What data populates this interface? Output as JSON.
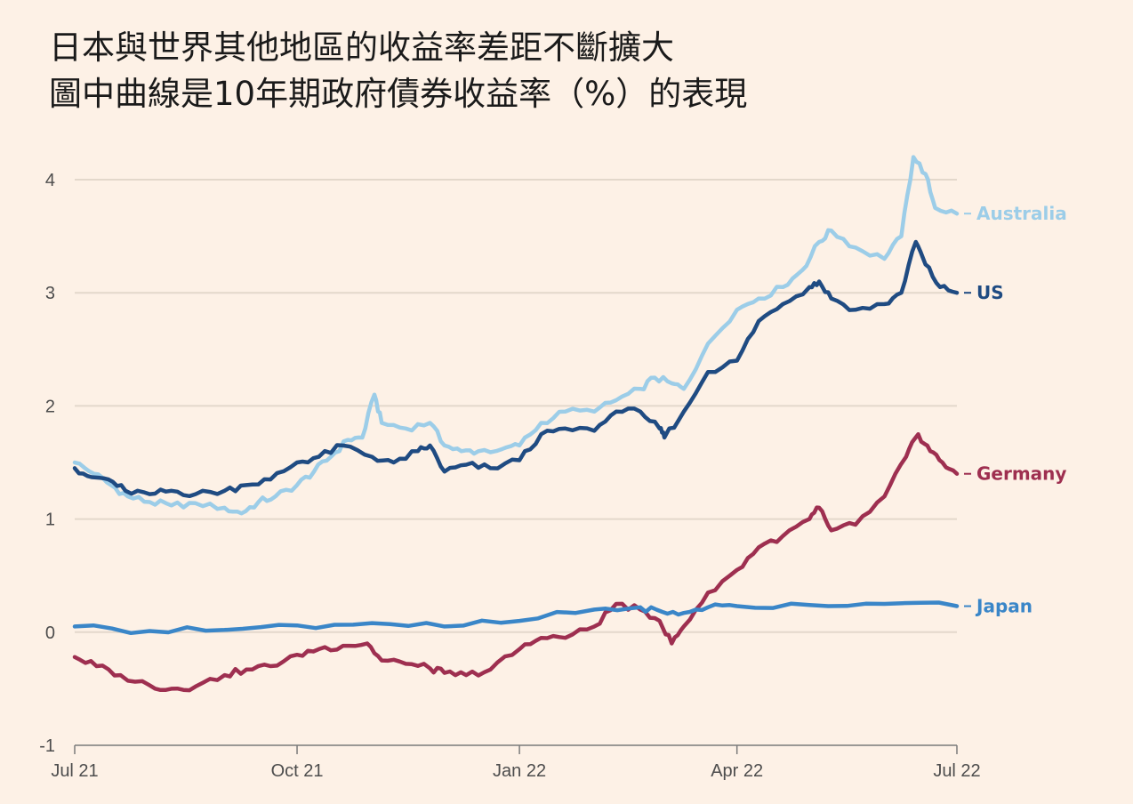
{
  "title": "日本與世界其他地區的收益率差距不斷擴大",
  "subtitle": "圖中曲線是10年期政府債券收益率（%）的表現",
  "chart_data": {
    "type": "line",
    "title": "日本與世界其他地區的收益率差距不斷擴大",
    "subtitle": "圖中曲線是10年期政府債券收益率（%）的表現",
    "xlabel": "",
    "ylabel": "",
    "xlim": [
      "2021-07-01",
      "2022-07-01"
    ],
    "ylim": [
      -1,
      4.3
    ],
    "grid": true,
    "x_ticks": [
      {
        "date": "2021-07-01",
        "label": "Jul 21"
      },
      {
        "date": "2021-10-01",
        "label": "Oct 21"
      },
      {
        "date": "2022-01-01",
        "label": "Jan 22"
      },
      {
        "date": "2022-04-01",
        "label": "Apr 22"
      },
      {
        "date": "2022-07-01",
        "label": "Jul 22"
      }
    ],
    "y_ticks": [
      {
        "value": 4,
        "label": "4"
      },
      {
        "value": 3,
        "label": "3"
      },
      {
        "value": 2,
        "label": "2"
      },
      {
        "value": 1,
        "label": "1"
      },
      {
        "value": 0,
        "label": "0"
      },
      {
        "value": -1,
        "label": "-1"
      }
    ],
    "legend": "direct-labels-right",
    "series": [
      {
        "name": "Australia",
        "color": "#9ccde8",
        "points": [
          [
            "2021-07-01",
            1.5
          ],
          [
            "2021-07-09",
            1.4
          ],
          [
            "2021-07-16",
            1.3
          ],
          [
            "2021-07-23",
            1.2
          ],
          [
            "2021-08-01",
            1.15
          ],
          [
            "2021-08-10",
            1.12
          ],
          [
            "2021-08-20",
            1.14
          ],
          [
            "2021-09-01",
            1.1
          ],
          [
            "2021-09-08",
            1.05
          ],
          [
            "2021-09-15",
            1.15
          ],
          [
            "2021-09-22",
            1.2
          ],
          [
            "2021-10-01",
            1.3
          ],
          [
            "2021-10-08",
            1.42
          ],
          [
            "2021-10-15",
            1.55
          ],
          [
            "2021-10-22",
            1.7
          ],
          [
            "2021-10-28",
            1.72
          ],
          [
            "2021-11-02",
            2.1
          ],
          [
            "2021-11-05",
            1.85
          ],
          [
            "2021-11-15",
            1.8
          ],
          [
            "2021-11-25",
            1.85
          ],
          [
            "2021-12-01",
            1.65
          ],
          [
            "2021-12-08",
            1.6
          ],
          [
            "2021-12-15",
            1.6
          ],
          [
            "2021-12-25",
            1.62
          ],
          [
            "2022-01-01",
            1.65
          ],
          [
            "2022-01-10",
            1.85
          ],
          [
            "2022-01-20",
            1.95
          ],
          [
            "2022-02-01",
            1.95
          ],
          [
            "2022-02-10",
            2.05
          ],
          [
            "2022-02-20",
            2.15
          ],
          [
            "2022-02-26",
            2.25
          ],
          [
            "2022-03-05",
            2.2
          ],
          [
            "2022-03-10",
            2.15
          ],
          [
            "2022-03-20",
            2.55
          ],
          [
            "2022-04-01",
            2.85
          ],
          [
            "2022-04-10",
            2.95
          ],
          [
            "2022-04-20",
            3.05
          ],
          [
            "2022-04-28",
            3.2
          ],
          [
            "2022-05-05",
            3.45
          ],
          [
            "2022-05-10",
            3.55
          ],
          [
            "2022-05-20",
            3.4
          ],
          [
            "2022-06-01",
            3.3
          ],
          [
            "2022-06-08",
            3.5
          ],
          [
            "2022-06-13",
            4.2
          ],
          [
            "2022-06-18",
            4.05
          ],
          [
            "2022-06-22",
            3.75
          ],
          [
            "2022-07-01",
            3.7
          ]
        ]
      },
      {
        "name": "US",
        "color": "#1f4b82",
        "points": [
          [
            "2021-07-01",
            1.45
          ],
          [
            "2021-07-08",
            1.37
          ],
          [
            "2021-07-15",
            1.35
          ],
          [
            "2021-07-22",
            1.25
          ],
          [
            "2021-08-01",
            1.22
          ],
          [
            "2021-08-10",
            1.25
          ],
          [
            "2021-08-20",
            1.22
          ],
          [
            "2021-09-01",
            1.25
          ],
          [
            "2021-09-10",
            1.3
          ],
          [
            "2021-09-20",
            1.35
          ],
          [
            "2021-10-01",
            1.5
          ],
          [
            "2021-10-10",
            1.55
          ],
          [
            "2021-10-20",
            1.65
          ],
          [
            "2021-11-01",
            1.55
          ],
          [
            "2021-11-10",
            1.5
          ],
          [
            "2021-11-20",
            1.6
          ],
          [
            "2021-11-25",
            1.65
          ],
          [
            "2021-12-01",
            1.42
          ],
          [
            "2021-12-10",
            1.48
          ],
          [
            "2021-12-20",
            1.45
          ],
          [
            "2022-01-01",
            1.52
          ],
          [
            "2022-01-10",
            1.75
          ],
          [
            "2022-01-20",
            1.8
          ],
          [
            "2022-02-01",
            1.78
          ],
          [
            "2022-02-10",
            1.95
          ],
          [
            "2022-02-20",
            1.95
          ],
          [
            "2022-02-28",
            1.8
          ],
          [
            "2022-03-02",
            1.72
          ],
          [
            "2022-03-10",
            1.95
          ],
          [
            "2022-03-20",
            2.3
          ],
          [
            "2022-04-01",
            2.4
          ],
          [
            "2022-04-10",
            2.75
          ],
          [
            "2022-04-20",
            2.9
          ],
          [
            "2022-05-01",
            3.05
          ],
          [
            "2022-05-05",
            3.1
          ],
          [
            "2022-05-10",
            2.95
          ],
          [
            "2022-05-20",
            2.85
          ],
          [
            "2022-06-01",
            2.9
          ],
          [
            "2022-06-08",
            3.0
          ],
          [
            "2022-06-14",
            3.45
          ],
          [
            "2022-06-18",
            3.25
          ],
          [
            "2022-06-24",
            3.05
          ],
          [
            "2022-07-01",
            3.0
          ]
        ]
      },
      {
        "name": "Germany",
        "color": "#9e2f50",
        "points": [
          [
            "2021-07-01",
            -0.22
          ],
          [
            "2021-07-10",
            -0.3
          ],
          [
            "2021-07-20",
            -0.38
          ],
          [
            "2021-08-01",
            -0.47
          ],
          [
            "2021-08-10",
            -0.5
          ],
          [
            "2021-08-20",
            -0.48
          ],
          [
            "2021-09-01",
            -0.38
          ],
          [
            "2021-09-10",
            -0.33
          ],
          [
            "2021-09-20",
            -0.3
          ],
          [
            "2021-10-01",
            -0.2
          ],
          [
            "2021-10-10",
            -0.15
          ],
          [
            "2021-10-20",
            -0.12
          ],
          [
            "2021-10-30",
            -0.1
          ],
          [
            "2021-11-05",
            -0.25
          ],
          [
            "2021-11-15",
            -0.28
          ],
          [
            "2021-11-25",
            -0.32
          ],
          [
            "2021-12-01",
            -0.36
          ],
          [
            "2021-12-10",
            -0.38
          ],
          [
            "2021-12-20",
            -0.33
          ],
          [
            "2022-01-01",
            -0.15
          ],
          [
            "2022-01-10",
            -0.05
          ],
          [
            "2022-01-20",
            -0.05
          ],
          [
            "2022-02-01",
            0.05
          ],
          [
            "2022-02-10",
            0.25
          ],
          [
            "2022-02-20",
            0.2
          ],
          [
            "2022-02-28",
            0.1
          ],
          [
            "2022-03-05",
            -0.1
          ],
          [
            "2022-03-10",
            0.05
          ],
          [
            "2022-03-20",
            0.35
          ],
          [
            "2022-04-01",
            0.55
          ],
          [
            "2022-04-10",
            0.75
          ],
          [
            "2022-04-20",
            0.85
          ],
          [
            "2022-05-01",
            1.0
          ],
          [
            "2022-05-05",
            1.1
          ],
          [
            "2022-05-10",
            0.9
          ],
          [
            "2022-05-20",
            0.95
          ],
          [
            "2022-06-01",
            1.2
          ],
          [
            "2022-06-10",
            1.55
          ],
          [
            "2022-06-15",
            1.75
          ],
          [
            "2022-06-20",
            1.6
          ],
          [
            "2022-06-25",
            1.5
          ],
          [
            "2022-07-01",
            1.4
          ]
        ]
      },
      {
        "name": "Japan",
        "color": "#3a86c8",
        "points": [
          [
            "2021-07-01",
            0.05
          ],
          [
            "2021-08-01",
            0.01
          ],
          [
            "2021-09-01",
            0.02
          ],
          [
            "2021-10-01",
            0.06
          ],
          [
            "2021-11-01",
            0.08
          ],
          [
            "2021-12-01",
            0.05
          ],
          [
            "2022-01-01",
            0.1
          ],
          [
            "2022-02-01",
            0.2
          ],
          [
            "2022-02-20",
            0.22
          ],
          [
            "2022-03-01",
            0.18
          ],
          [
            "2022-03-10",
            0.17
          ],
          [
            "2022-03-20",
            0.22
          ],
          [
            "2022-04-01",
            0.23
          ],
          [
            "2022-05-01",
            0.24
          ],
          [
            "2022-06-01",
            0.25
          ],
          [
            "2022-07-01",
            0.23
          ]
        ]
      }
    ]
  }
}
